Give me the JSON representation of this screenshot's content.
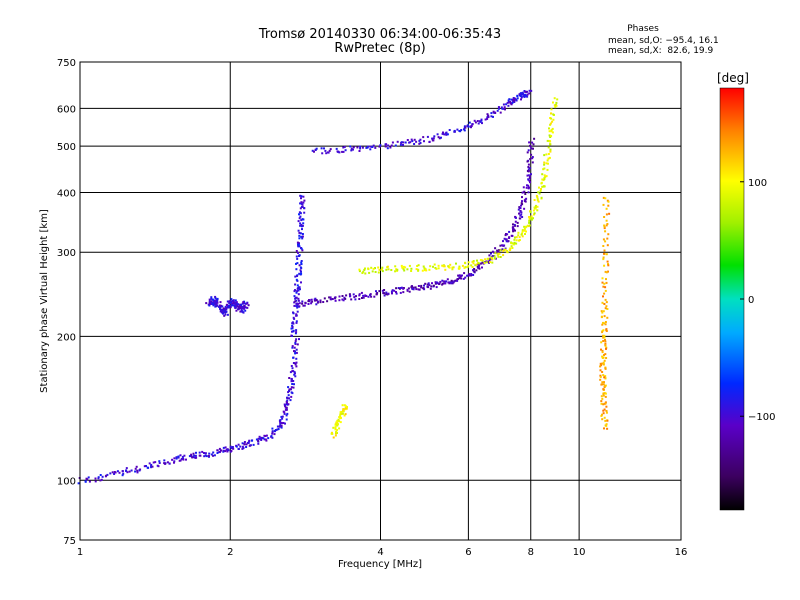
{
  "chart_data": {
    "type": "scatter",
    "title": "Tromsø 20140330 06:34:00-06:35:43",
    "subtitle": "RwPretec (8p)",
    "xlabel": "Frequency [MHz]",
    "ylabel": "Stationary phase Virtual Height [km]",
    "x_scale": "log2",
    "y_scale": "log",
    "xlim": [
      1,
      16
    ],
    "ylim": [
      75,
      750
    ],
    "x_ticks": [
      1,
      2,
      4,
      6,
      8,
      10,
      16
    ],
    "x_tick_labels": [
      "1",
      "2",
      "4",
      "6",
      "8",
      "10",
      "16"
    ],
    "y_ticks": [
      75,
      100,
      200,
      300,
      400,
      500,
      600,
      750
    ],
    "y_tick_labels": [
      "75",
      "100",
      "200",
      "300",
      "400",
      "500",
      "600",
      "750"
    ],
    "grid": true,
    "stats": {
      "header": "Phases",
      "line_o": "mean, sd,O: −95.4, 16.1",
      "line_x": "mean, sd,X:  82.6, 19.9"
    },
    "colorbar": {
      "label": "[deg]",
      "range": [
        -180,
        180
      ],
      "ticks": [
        100,
        0,
        -100
      ],
      "tick_labels": [
        "100",
        "0",
        "−100"
      ],
      "placement": "right"
    },
    "series": [
      {
        "traces": [
          {
            "x": [
              1.0,
              1.2,
              1.4,
              1.6,
              1.8,
              2.0,
              2.2,
              2.4,
              2.55,
              2.62,
              2.66,
              2.7
            ],
            "y": [
              100,
              104,
              108,
              112,
              114,
              117,
              120,
              125,
              135,
              150,
              170,
              200
            ],
            "phase": -100
          },
          {
            "x": [
              2.66,
              2.7,
              2.72,
              2.74,
              2.76,
              2.78
            ],
            "y": [
              200,
              230,
              260,
              300,
              350,
              400
            ],
            "phase": -95
          },
          {
            "x": [
              2.72,
              3.0,
              3.5,
              4.0,
              4.5,
              5.0,
              5.5,
              6.0,
              6.5,
              7.0,
              7.4,
              7.7,
              7.9,
              8.0
            ],
            "y": [
              235,
              238,
              243,
              248,
              252,
              256,
              262,
              272,
              288,
              310,
              340,
              380,
              440,
              520
            ],
            "phase": -115
          },
          {
            "x": [
              2.9,
              3.5,
              4.2,
              5.0,
              5.8,
              6.5,
              7.2,
              7.6,
              7.9
            ],
            "y": [
              490,
              495,
              505,
              520,
              545,
              575,
              620,
              640,
              650
            ],
            "phase": -100
          },
          {
            "x": [
              3.6,
              4.2,
              5.0,
              5.8,
              6.6,
              7.3,
              7.8,
              8.2,
              8.5,
              8.7,
              8.9
            ],
            "y": [
              275,
              278,
              280,
              282,
              290,
              310,
              340,
              380,
              440,
              530,
              640
            ],
            "phase": 90
          },
          {
            "x": [
              1.8,
              1.85,
              1.9,
              1.95,
              2.0,
              2.05,
              2.1,
              2.15
            ],
            "y": [
              235,
              240,
              230,
              225,
              238,
              232,
              228,
              236
            ],
            "phase": -100
          },
          {
            "x": [
              11.2,
              11.15,
              11.1,
              11.15,
              11.2,
              11.25,
              11.3
            ],
            "y": [
              130,
              150,
              170,
              195,
              230,
              300,
              400
            ],
            "phase": 130
          },
          {
            "x": [
              3.2,
              3.3,
              3.4
            ],
            "y": [
              125,
              135,
              145
            ],
            "phase": 100
          }
        ]
      }
    ]
  }
}
